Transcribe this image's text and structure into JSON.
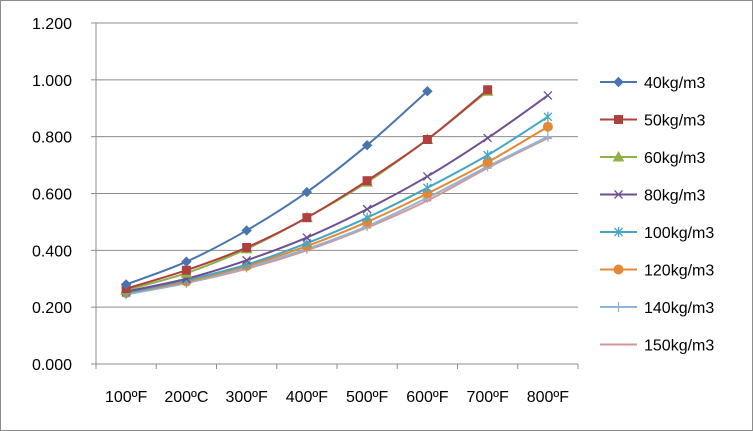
{
  "chart_data": {
    "type": "line",
    "title": "",
    "xlabel": "",
    "ylabel": "",
    "categories": [
      "100ºF",
      "200ºC",
      "300ºF",
      "400ºF",
      "500ºF",
      "600ºF",
      "700ºF",
      "800ºF"
    ],
    "ylim": [
      0,
      1.2
    ],
    "yticks": [
      "0.000",
      "0.200",
      "0.400",
      "0.600",
      "0.800",
      "1.000",
      "1.200"
    ],
    "grid": "horizontal",
    "legend": "right",
    "series": [
      {
        "name": "40kg/m3",
        "color": "#4a74b0",
        "marker": "diamond",
        "values": [
          0.28,
          0.36,
          0.47,
          0.605,
          0.77,
          0.96,
          null,
          null
        ]
      },
      {
        "name": "50kg/m3",
        "color": "#b0403e",
        "marker": "square",
        "values": [
          0.265,
          0.33,
          0.41,
          0.515,
          0.645,
          0.79,
          0.965,
          null
        ]
      },
      {
        "name": "60kg/m3",
        "color": "#90b048",
        "marker": "triangle",
        "values": [
          0.26,
          0.32,
          0.405,
          0.515,
          0.64,
          0.79,
          0.96,
          null
        ]
      },
      {
        "name": "80kg/m3",
        "color": "#6e4f93",
        "marker": "x",
        "values": [
          0.255,
          0.3,
          0.365,
          0.445,
          0.545,
          0.66,
          0.795,
          0.945
        ]
      },
      {
        "name": "100kg/m3",
        "color": "#46a6c4",
        "marker": "asterisk",
        "values": [
          0.25,
          0.295,
          0.35,
          0.425,
          0.515,
          0.62,
          0.735,
          0.87
        ]
      },
      {
        "name": "120kg/m3",
        "color": "#e38834",
        "marker": "circle",
        "values": [
          0.25,
          0.29,
          0.345,
          0.415,
          0.5,
          0.6,
          0.71,
          0.835
        ]
      },
      {
        "name": "140kg/m3",
        "color": "#90b3d8",
        "marker": "plus",
        "values": [
          0.245,
          0.285,
          0.34,
          0.405,
          0.485,
          0.585,
          0.695,
          0.8
        ]
      },
      {
        "name": "150kg/m3",
        "color": "#d49694",
        "marker": "dash",
        "values": [
          0.245,
          0.285,
          0.335,
          0.4,
          0.48,
          0.575,
          0.69,
          0.795
        ]
      }
    ]
  }
}
